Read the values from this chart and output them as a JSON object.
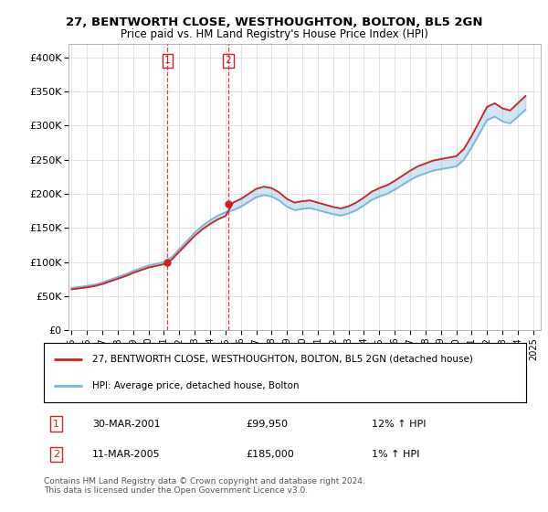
{
  "title": "27, BENTWORTH CLOSE, WESTHOUGHTON, BOLTON, BL5 2GN",
  "subtitle": "Price paid vs. HM Land Registry's House Price Index (HPI)",
  "ylim": [
    0,
    420000
  ],
  "yticks": [
    0,
    50000,
    100000,
    150000,
    200000,
    250000,
    300000,
    350000,
    400000
  ],
  "ytick_labels": [
    "£0",
    "£50K",
    "£100K",
    "£150K",
    "£200K",
    "£250K",
    "£300K",
    "£350K",
    "£400K"
  ],
  "xlim_start": 1994.8,
  "xlim_end": 2025.5,
  "hpi_color": "#7ab8d9",
  "price_color": "#cc2222",
  "vline_color": "#cc2222",
  "transaction1_year": 2001.24,
  "transaction1_price": 99950,
  "transaction2_year": 2005.19,
  "transaction2_price": 185000,
  "legend_line1": "27, BENTWORTH CLOSE, WESTHOUGHTON, BOLTON, BL5 2GN (detached house)",
  "legend_line2": "HPI: Average price, detached house, Bolton",
  "table_row1": [
    "1",
    "30-MAR-2001",
    "£99,950",
    "12% ↑ HPI"
  ],
  "table_row2": [
    "2",
    "11-MAR-2005",
    "£185,000",
    "1% ↑ HPI"
  ],
  "footnote": "Contains HM Land Registry data © Crown copyright and database right 2024.\nThis data is licensed under the Open Government Licence v3.0.",
  "background_color": "#ffffff",
  "grid_color": "#d8d8d8",
  "hpi_years": [
    1995,
    1995.5,
    1996,
    1996.5,
    1997,
    1997.5,
    1998,
    1998.5,
    1999,
    1999.5,
    2000,
    2000.5,
    2001,
    2001.5,
    2002,
    2002.5,
    2003,
    2003.5,
    2004,
    2004.5,
    2005,
    2005.5,
    2006,
    2006.5,
    2007,
    2007.5,
    2008,
    2008.5,
    2009,
    2009.5,
    2010,
    2010.5,
    2011,
    2011.5,
    2012,
    2012.5,
    2013,
    2013.5,
    2014,
    2014.5,
    2015,
    2015.5,
    2016,
    2016.5,
    2017,
    2017.5,
    2018,
    2018.5,
    2019,
    2019.5,
    2020,
    2020.5,
    2021,
    2021.5,
    2022,
    2022.5,
    2023,
    2023.5,
    2024,
    2024.5
  ],
  "hpi_values": [
    62000,
    63500,
    65000,
    67000,
    70000,
    74000,
    78000,
    82000,
    87000,
    91000,
    95000,
    97500,
    100000,
    107000,
    119000,
    131000,
    143000,
    153000,
    161000,
    168000,
    173000,
    176000,
    181000,
    188000,
    195000,
    198000,
    196000,
    190000,
    181000,
    176000,
    178000,
    179000,
    176000,
    173000,
    170000,
    168000,
    171000,
    176000,
    183000,
    191000,
    196000,
    200000,
    206000,
    213000,
    220000,
    226000,
    230000,
    234000,
    236000,
    238000,
    240000,
    250000,
    268000,
    288000,
    308000,
    313000,
    306000,
    303000,
    313000,
    323000
  ]
}
